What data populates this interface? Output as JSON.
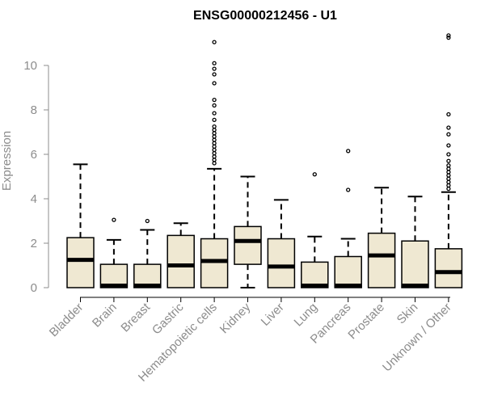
{
  "chart_data": {
    "type": "boxplot",
    "title": "ENSG00000212456 - U1",
    "ylabel": "Expression",
    "xlabel": "",
    "ylim": [
      0,
      11.5
    ],
    "yticks": [
      0,
      2,
      4,
      6,
      8,
      10
    ],
    "grid": false,
    "box_color": "#efe8d2",
    "outline_color": "#000000",
    "label_color": "#8c8c8c",
    "categories": [
      "Bladder",
      "Brain",
      "Breast",
      "Gastric",
      "Hematopoietic cells",
      "Kidney",
      "Liver",
      "Lung",
      "Pancreas",
      "Prostate",
      "Skin",
      "Unknown / Other"
    ],
    "boxes": [
      {
        "whisker_low": 0,
        "q1": 0,
        "median": 1.25,
        "q3": 2.25,
        "whisker_high": 5.55,
        "outliers": []
      },
      {
        "whisker_low": 0,
        "q1": 0,
        "median": 0.02,
        "q3": 1.05,
        "whisker_high": 2.15,
        "outliers": [
          3.05
        ]
      },
      {
        "whisker_low": 0,
        "q1": 0,
        "median": 0.02,
        "q3": 1.05,
        "whisker_high": 2.6,
        "outliers": [
          3.0
        ]
      },
      {
        "whisker_low": 0,
        "q1": 0,
        "median": 1.0,
        "q3": 2.35,
        "whisker_high": 2.9,
        "outliers": []
      },
      {
        "whisker_low": 0,
        "q1": 0,
        "median": 1.2,
        "q3": 2.2,
        "whisker_high": 5.35,
        "outliers": [
          5.6,
          5.75,
          5.9,
          6.05,
          6.2,
          6.35,
          6.5,
          6.65,
          6.8,
          6.95,
          7.1,
          7.25,
          7.55,
          7.85,
          8.2,
          8.45,
          9.2,
          9.6,
          9.85,
          10.1,
          11.05
        ]
      },
      {
        "whisker_low": 0,
        "q1": 1.05,
        "median": 2.1,
        "q3": 2.75,
        "whisker_high": 5.0,
        "outliers": []
      },
      {
        "whisker_low": 0,
        "q1": 0,
        "median": 0.95,
        "q3": 2.2,
        "whisker_high": 3.95,
        "outliers": []
      },
      {
        "whisker_low": 0,
        "q1": 0,
        "median": 0.02,
        "q3": 1.15,
        "whisker_high": 2.3,
        "outliers": [
          5.1
        ]
      },
      {
        "whisker_low": 0,
        "q1": 0,
        "median": 0.02,
        "q3": 1.4,
        "whisker_high": 2.2,
        "outliers": [
          4.4,
          6.15
        ]
      },
      {
        "whisker_low": 0,
        "q1": 0,
        "median": 1.45,
        "q3": 2.45,
        "whisker_high": 4.5,
        "outliers": []
      },
      {
        "whisker_low": 0,
        "q1": 0,
        "median": 0.02,
        "q3": 2.1,
        "whisker_high": 4.1,
        "outliers": []
      },
      {
        "whisker_low": 0,
        "q1": 0,
        "median": 0.7,
        "q3": 1.75,
        "whisker_high": 4.3,
        "outliers": [
          4.45,
          4.6,
          4.75,
          4.9,
          5.05,
          5.2,
          5.35,
          5.5,
          5.7,
          6.0,
          6.4,
          6.9,
          7.2,
          7.8,
          11.25,
          11.35
        ]
      }
    ]
  }
}
